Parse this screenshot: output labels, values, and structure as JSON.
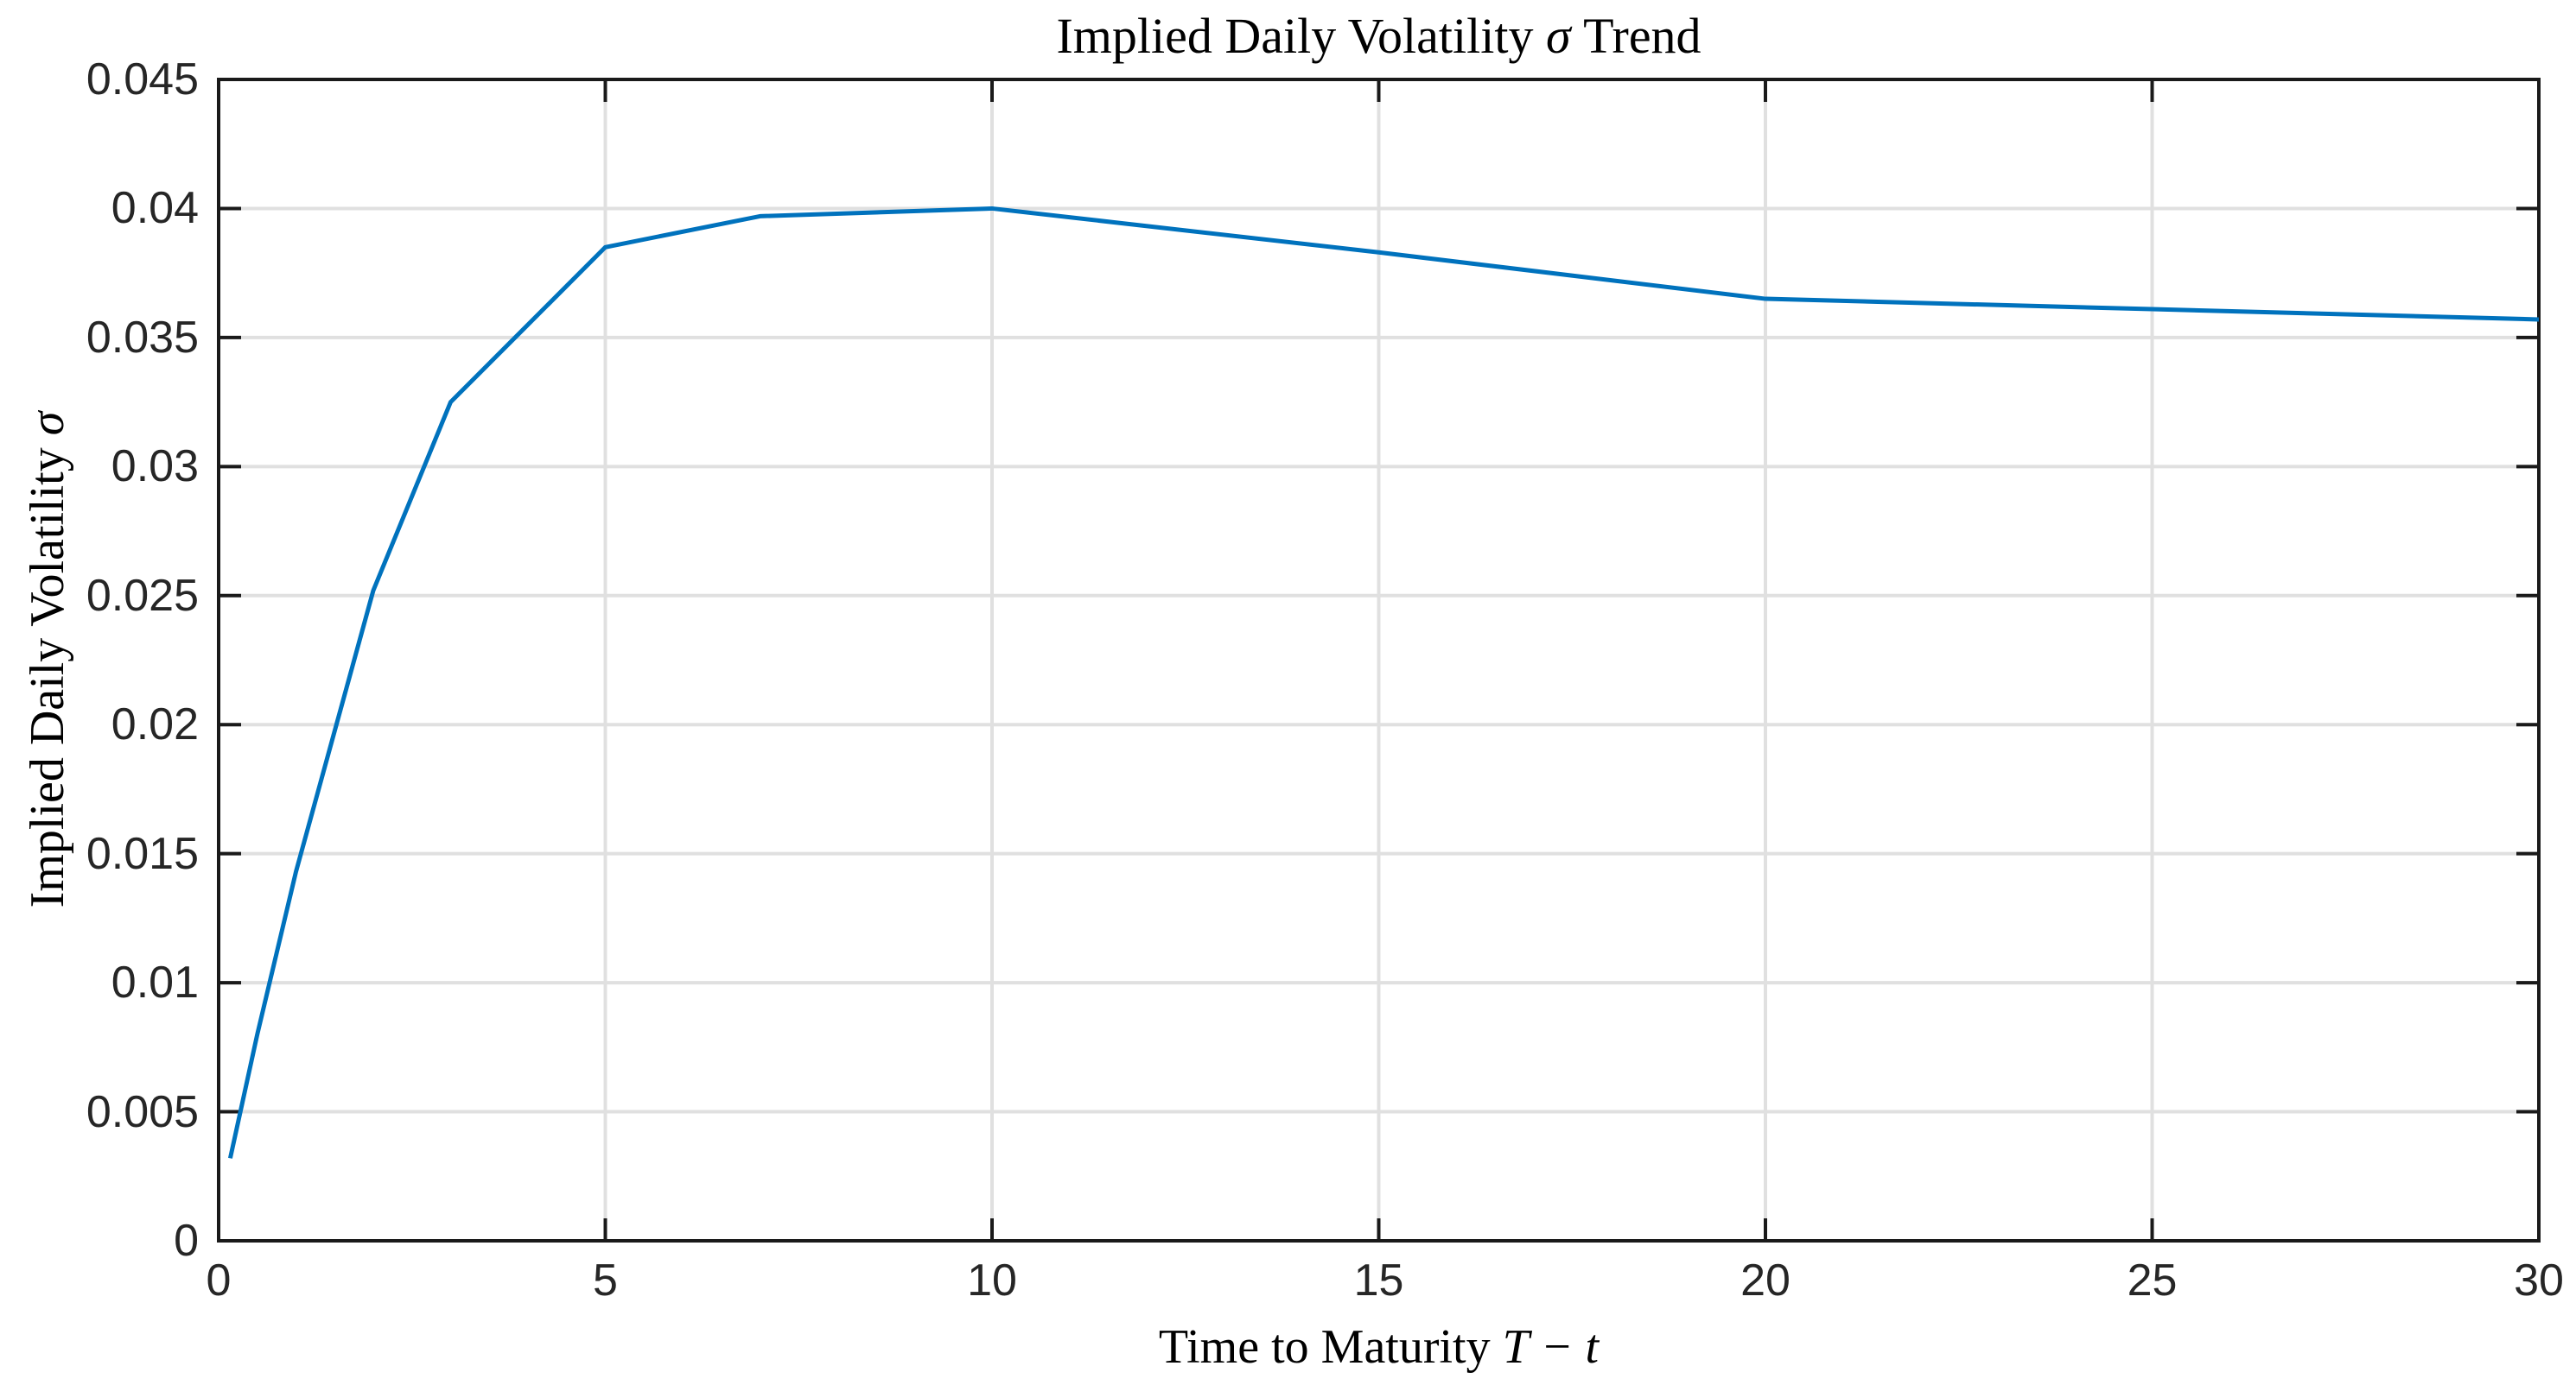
{
  "labels": {
    "title": [
      "Implied Daily Volatility ",
      "σ",
      " Trend"
    ],
    "xlabel": [
      "Time to Maturity ",
      "T − t"
    ],
    "ylabel": [
      "Implied Daily Volatility ",
      "σ"
    ]
  },
  "chart_data": {
    "type": "line",
    "title": "Implied Daily Volatility σ Trend",
    "xlabel": "Time to Maturity T − t",
    "ylabel": "Implied Daily Volatility σ",
    "x": [
      0.15,
      0.5,
      1,
      2,
      3,
      5,
      7,
      10,
      15,
      20,
      25,
      30
    ],
    "y": [
      0.0032,
      0.008,
      0.0143,
      0.0252,
      0.0325,
      0.0385,
      0.0397,
      0.04,
      0.0383,
      0.0365,
      0.0361,
      0.0357
    ],
    "xlim": [
      0,
      30
    ],
    "ylim": [
      0,
      0.045
    ],
    "xticks": [
      0,
      5,
      10,
      15,
      20,
      25,
      30
    ],
    "xtick_labels": [
      "0",
      "5",
      "10",
      "15",
      "20",
      "25",
      "30"
    ],
    "yticks": [
      0,
      0.005,
      0.01,
      0.015,
      0.02,
      0.025,
      0.03,
      0.035,
      0.04,
      0.045
    ],
    "ytick_labels": [
      "0",
      "0.005",
      "0.01",
      "0.015",
      "0.02",
      "0.025",
      "0.03",
      "0.035",
      "0.04",
      "0.045"
    ],
    "grid": true,
    "legend": false,
    "line_color": "#0072BD",
    "grid_color": "#e0e0e0",
    "axis_color": "#1a1a1a",
    "tick_text_color": "#262626",
    "background_color": "#ffffff"
  }
}
